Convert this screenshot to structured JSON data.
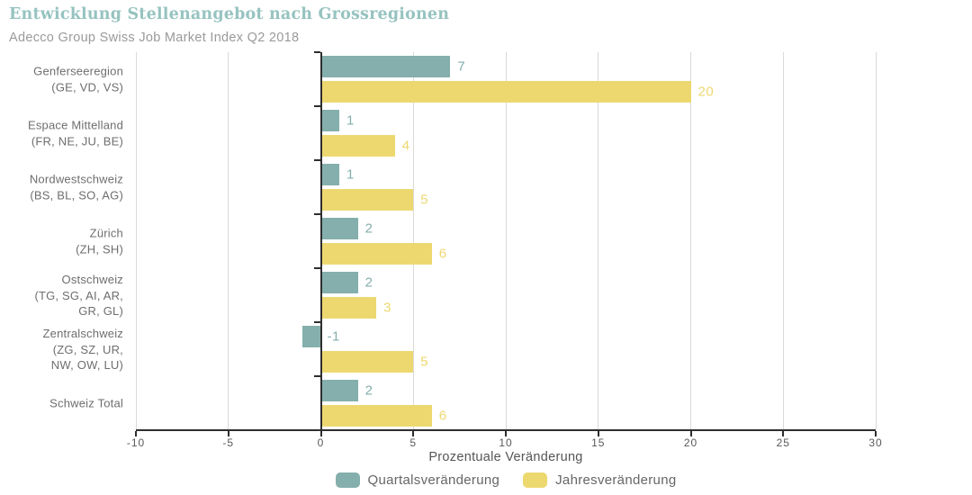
{
  "header": {
    "title": "Entwicklung Stellenangebot nach Grossregionen",
    "subtitle": "Adecco Group Swiss Job Market Index Q2 2018"
  },
  "chart_data": {
    "type": "bar",
    "orientation": "horizontal",
    "title": "Entwicklung Stellenangebot nach Grossregionen",
    "subtitle": "Adecco Group Swiss Job Market Index Q2 2018",
    "categories": [
      [
        "Genferseeregion",
        "(GE, VD, VS)"
      ],
      [
        "Espace Mittelland",
        "(FR, NE, JU, BE)"
      ],
      [
        "Nordwestschweiz",
        "(BS, BL, SO, AG)"
      ],
      [
        "Zürich",
        "(ZH, SH)"
      ],
      [
        "Ostschweiz",
        "(TG, SG, AI, AR,",
        "GR, GL)"
      ],
      [
        "Zentralschweiz",
        "(ZG, SZ, UR,",
        "NW, OW, LU)"
      ],
      [
        "Schweiz Total"
      ]
    ],
    "series": [
      {
        "name": "Quartalsveränderung",
        "color": "#84afac",
        "values": [
          7,
          1,
          1,
          2,
          2,
          -1,
          2
        ]
      },
      {
        "name": "Jahresveränderung",
        "color": "#edd870",
        "values": [
          20,
          4,
          5,
          6,
          3,
          5,
          6
        ]
      }
    ],
    "xlabel": "Prozentuale Veränderung",
    "xlim": [
      -10,
      30
    ],
    "xticks": [
      -10,
      -5,
      0,
      5,
      10,
      15,
      20,
      25,
      30
    ],
    "grid": true,
    "legend_position": "bottom",
    "colors": {
      "title": "#96c3c0",
      "subtitle": "#9a9a9a",
      "axis": "#2e2e2e",
      "gridline": "#d9d9d9",
      "category_label": "#6e6e6e",
      "tick_label": "#595959",
      "legend_label": "#666666"
    }
  }
}
